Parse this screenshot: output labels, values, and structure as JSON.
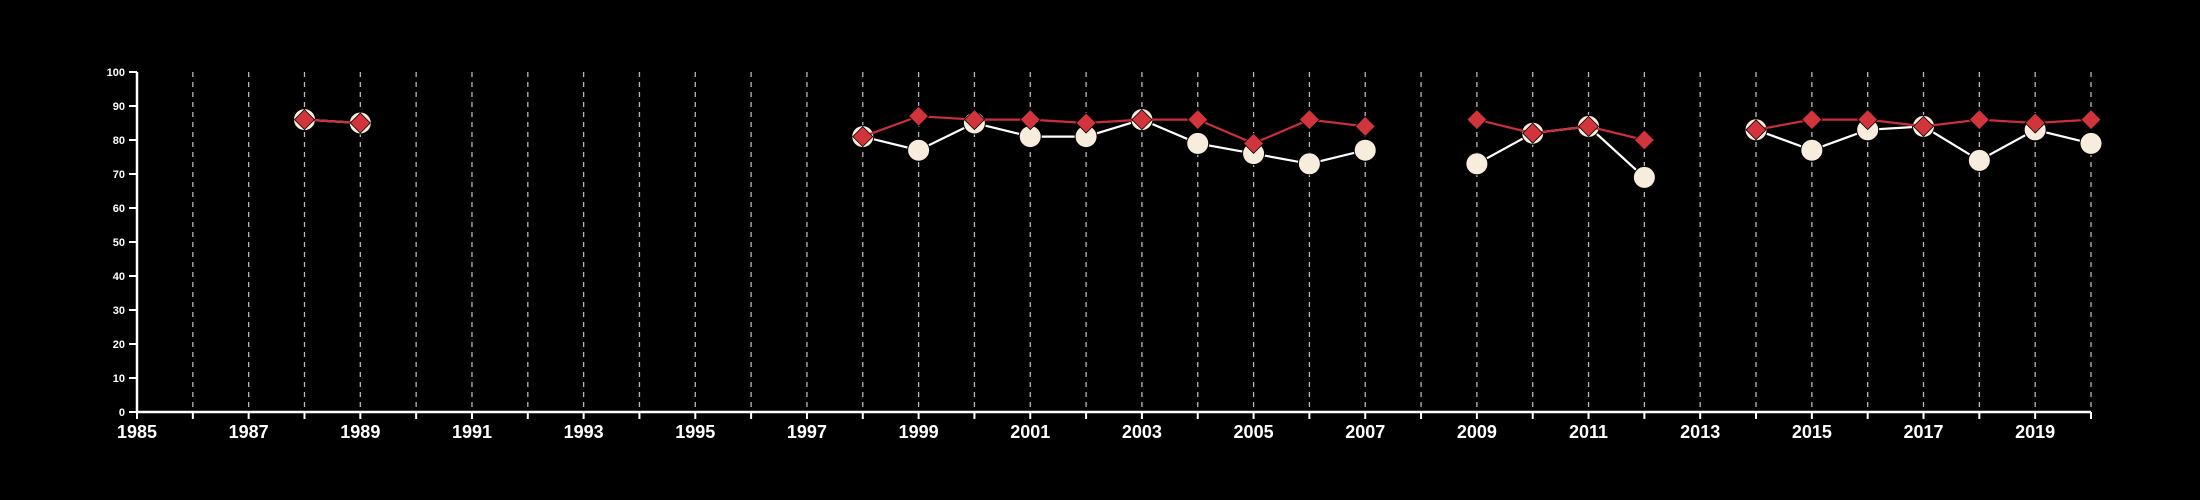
{
  "chart_data": {
    "type": "line",
    "title": "",
    "xlabel": "",
    "ylabel": "",
    "xlim": [
      1985,
      2020
    ],
    "ylim": [
      0,
      100
    ],
    "x_ticks": [
      1985,
      1986,
      1987,
      1988,
      1989,
      1990,
      1991,
      1992,
      1993,
      1994,
      1995,
      1996,
      1997,
      1998,
      1999,
      2000,
      2001,
      2002,
      2003,
      2004,
      2005,
      2006,
      2007,
      2008,
      2009,
      2010,
      2011,
      2012,
      2013,
      2014,
      2015,
      2016,
      2017,
      2018,
      2019,
      2020
    ],
    "x_tick_labels": [
      "1985",
      "1987",
      "1989",
      "1991",
      "1993",
      "1995",
      "1997",
      "1999",
      "2001",
      "2003",
      "2005",
      "2007",
      "2009",
      "2011",
      "2013",
      "2015",
      "2017",
      "2019"
    ],
    "y_ticks": [
      0,
      10,
      20,
      30,
      40,
      50,
      60,
      70,
      80,
      90,
      100
    ],
    "y_tick_labels": [
      "0",
      "10",
      "20",
      "30",
      "40",
      "50",
      "60",
      "70",
      "80",
      "90",
      "100"
    ],
    "grid": "vertical dashed",
    "background": "#000000",
    "series": [
      {
        "marker": "circle",
        "color": "#ffffff",
        "fill": "#f8ecdc",
        "x": [
          1988,
          1989,
          1998,
          1999,
          2000,
          2001,
          2002,
          2003,
          2004,
          2005,
          2006,
          2007,
          2009,
          2010,
          2011,
          2012,
          2014,
          2015,
          2016,
          2017,
          2018,
          2019,
          2020
        ],
        "values": [
          86,
          85,
          81,
          77,
          85,
          81,
          81,
          86,
          79,
          76,
          73,
          77,
          73,
          82,
          84,
          69,
          83,
          77,
          83,
          84,
          74,
          83,
          79
        ]
      },
      {
        "marker": "diamond",
        "color": "#c8303a",
        "fill": "#d2343c",
        "x": [
          1988,
          1989,
          1998,
          1999,
          2000,
          2001,
          2002,
          2003,
          2004,
          2005,
          2006,
          2007,
          2009,
          2010,
          2011,
          2012,
          2014,
          2015,
          2016,
          2017,
          2018,
          2019,
          2020
        ],
        "values": [
          86,
          85,
          81,
          87,
          86,
          86,
          85,
          86,
          86,
          79,
          86,
          84,
          86,
          82,
          84,
          80,
          83,
          86,
          86,
          84,
          86,
          85,
          86
        ]
      }
    ]
  }
}
